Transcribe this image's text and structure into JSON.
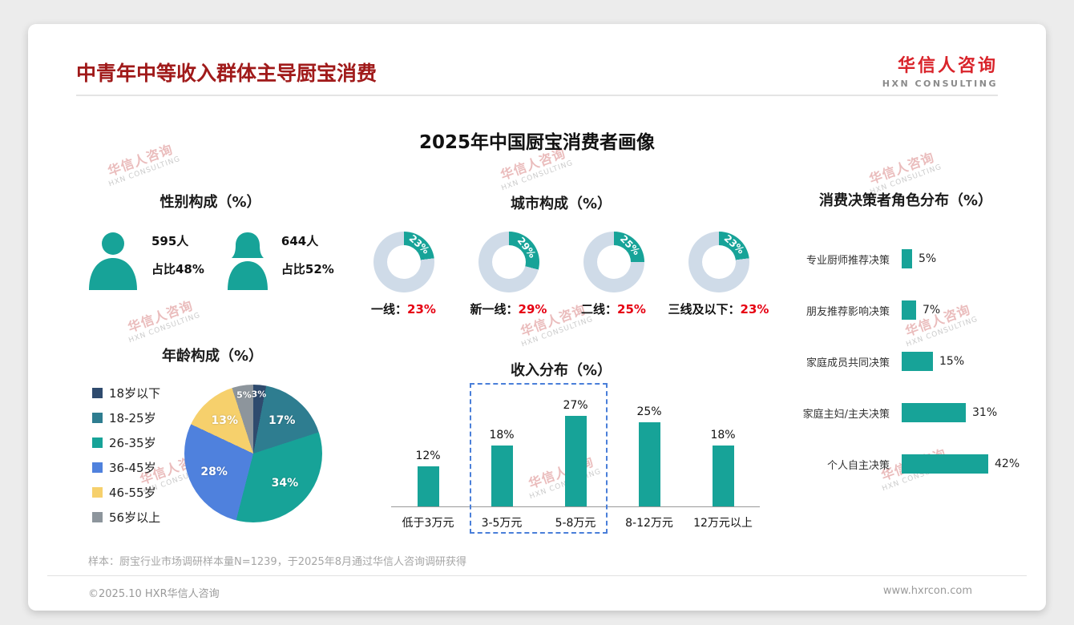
{
  "page": {
    "title": "中青年中等收入群体主导厨宝消费",
    "logo": {
      "cn": "华信人咨询",
      "en": "HXN CONSULTING"
    },
    "main_title": "2025年中国厨宝消费者画像",
    "watermark": {
      "line1": "华信人咨询",
      "line2": "HXN CONSULTING"
    },
    "note": "样本：厨宝行业市场调研样本量N=1239，于2025年8月通过华信人咨询调研获得",
    "footer_left": "©2025.10 HXR华信人咨询",
    "footer_right": "www.hxrcon.com"
  },
  "colors": {
    "teal": "#17a398",
    "accent_red": "#e60012",
    "title_red": "#a01a1a",
    "logo_red": "#d9232a",
    "donut_rest": "#cfdbe8",
    "highlight_dash": "#4a7fd9"
  },
  "chart_data": [
    {
      "id": "gender",
      "type": "pictogram",
      "title": "性别构成（%）",
      "items": [
        {
          "gender": "male",
          "count": "595人",
          "share": "占比48%"
        },
        {
          "gender": "female",
          "count": "644人",
          "share": "占比52%"
        }
      ]
    },
    {
      "id": "city",
      "type": "donut",
      "title": "城市构成（%）",
      "items": [
        {
          "label": "一线",
          "value": 23
        },
        {
          "label": "新一线",
          "value": 29
        },
        {
          "label": "二线",
          "value": 25
        },
        {
          "label": "三线及以下",
          "value": 23
        }
      ]
    },
    {
      "id": "decision",
      "type": "bar-horizontal",
      "title": "消费决策者角色分布（%）",
      "categories": [
        "专业厨师推荐决策",
        "朋友推荐影响决策",
        "家庭成员共同决策",
        "家庭主妇/主夫决策",
        "个人自主决策"
      ],
      "values": [
        5,
        7,
        15,
        31,
        42
      ],
      "xlim": [
        0,
        45
      ],
      "legend_position": "none"
    },
    {
      "id": "age",
      "type": "pie",
      "title": "年龄构成（%）",
      "categories": [
        "18岁以下",
        "18-25岁",
        "26-35岁",
        "36-45岁",
        "46-55岁",
        "56岁以上"
      ],
      "values": [
        3,
        17,
        34,
        28,
        13,
        5
      ],
      "colors": [
        "#2f4b6e",
        "#2e7d90",
        "#17a398",
        "#4f81dd",
        "#f6d06c",
        "#8d959c"
      ],
      "legend_position": "left"
    },
    {
      "id": "income",
      "type": "bar",
      "title": "收入分布（%）",
      "categories": [
        "低于3万元",
        "3-5万元",
        "5-8万元",
        "8-12万元",
        "12万元以上"
      ],
      "values": [
        12,
        18,
        27,
        25,
        18
      ],
      "ylim": [
        0,
        30
      ],
      "highlight_range": [
        1,
        2
      ]
    }
  ]
}
